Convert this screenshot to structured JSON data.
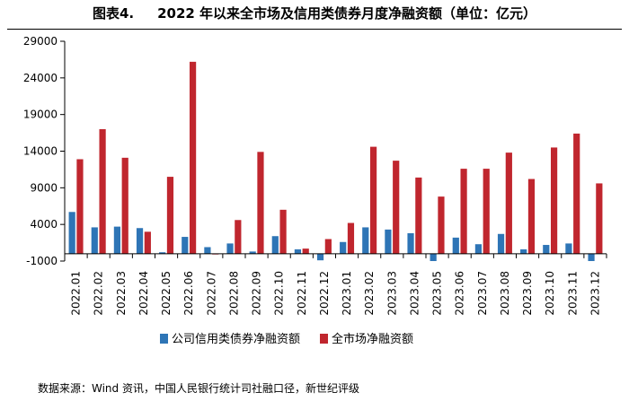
{
  "figure": {
    "label": "图表4.",
    "title": "2022 年以来全市场及信用类债券月度净融资额（单位：亿元）",
    "source": "数据来源：Wind 资讯，中国人民银行统计司社融口径，新世纪评级"
  },
  "colors": {
    "series1": "#2E75B6",
    "series2": "#C0262E",
    "axis": "#000000"
  },
  "chart_data": {
    "type": "bar",
    "title": "2022 年以来全市场及信用类债券月度净融资额（单位：亿元）",
    "xlabel": "",
    "ylabel": "",
    "ylim": [
      -1000,
      29000
    ],
    "yticks": [
      -1000,
      4000,
      9000,
      14000,
      19000,
      24000,
      29000
    ],
    "ytick_labels": [
      "-1000",
      "4000",
      "9000",
      "14000",
      "19000",
      "24000",
      "29000"
    ],
    "grid": false,
    "legend_position": "bottom",
    "categories": [
      "2022.01",
      "2022.02",
      "2022.03",
      "2022.04",
      "2022.05",
      "2022.06",
      "2022.07",
      "2022.08",
      "2022.09",
      "2022.10",
      "2022.11",
      "2022.12",
      "2023.01",
      "2023.02",
      "2023.03",
      "2023.04",
      "2023.05",
      "2023.06",
      "2023.07",
      "2023.08",
      "2023.09",
      "2023.10",
      "2023.11",
      "2023.12"
    ],
    "series": [
      {
        "name": "公司信用类债券净融资额",
        "color": "#2E75B6",
        "values": [
          5700,
          3600,
          3700,
          3500,
          200,
          2300,
          900,
          1400,
          300,
          2400,
          600,
          -900,
          1600,
          3600,
          3300,
          2800,
          -1000,
          2200,
          1300,
          2700,
          600,
          1200,
          1400,
          -1000
        ]
      },
      {
        "name": "全市场净融资额",
        "color": "#C0262E",
        "values": [
          12900,
          17000,
          13100,
          3000,
          10500,
          26200,
          -100,
          4600,
          13900,
          6000,
          700,
          2000,
          4200,
          14600,
          12700,
          10400,
          7800,
          11600,
          11600,
          13800,
          10200,
          14500,
          16400,
          9600
        ]
      }
    ]
  }
}
